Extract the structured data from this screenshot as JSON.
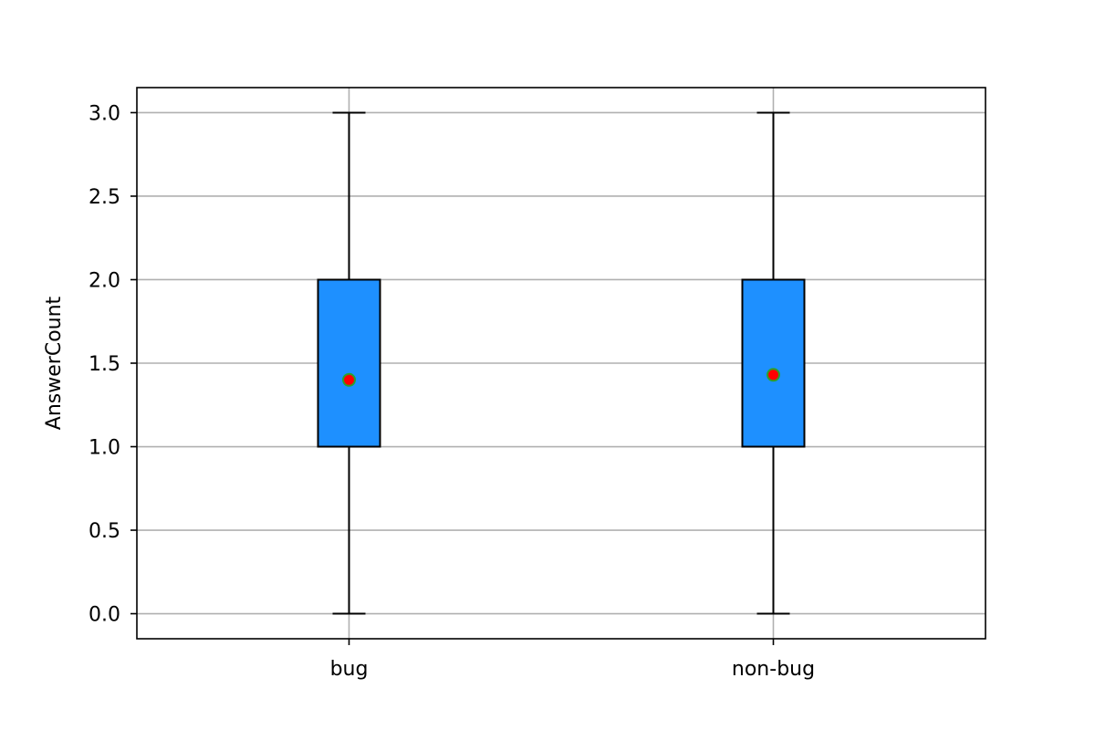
{
  "chart_data": {
    "type": "box",
    "title": "",
    "xlabel": "",
    "ylabel": "AnswerCount",
    "ylim": [
      -0.15,
      3.15
    ],
    "y_ticks": [
      "0.0",
      "0.5",
      "1.0",
      "1.5",
      "2.0",
      "2.5",
      "3.0"
    ],
    "grid": true,
    "categories": [
      "bug",
      "non-bug"
    ],
    "boxes": [
      {
        "name": "bug",
        "whisker_low": 0.0,
        "q1": 1.0,
        "median": 1.0,
        "q3": 2.0,
        "whisker_high": 3.0,
        "mean": 1.4
      },
      {
        "name": "non-bug",
        "whisker_low": 0.0,
        "q1": 1.0,
        "median": 1.0,
        "q3": 2.0,
        "whisker_high": 3.0,
        "mean": 1.43
      }
    ],
    "colors": {
      "box_fill": "#1e90ff",
      "mean_marker": "#ff0000",
      "mean_marker_edge": "#2ca02c"
    }
  }
}
